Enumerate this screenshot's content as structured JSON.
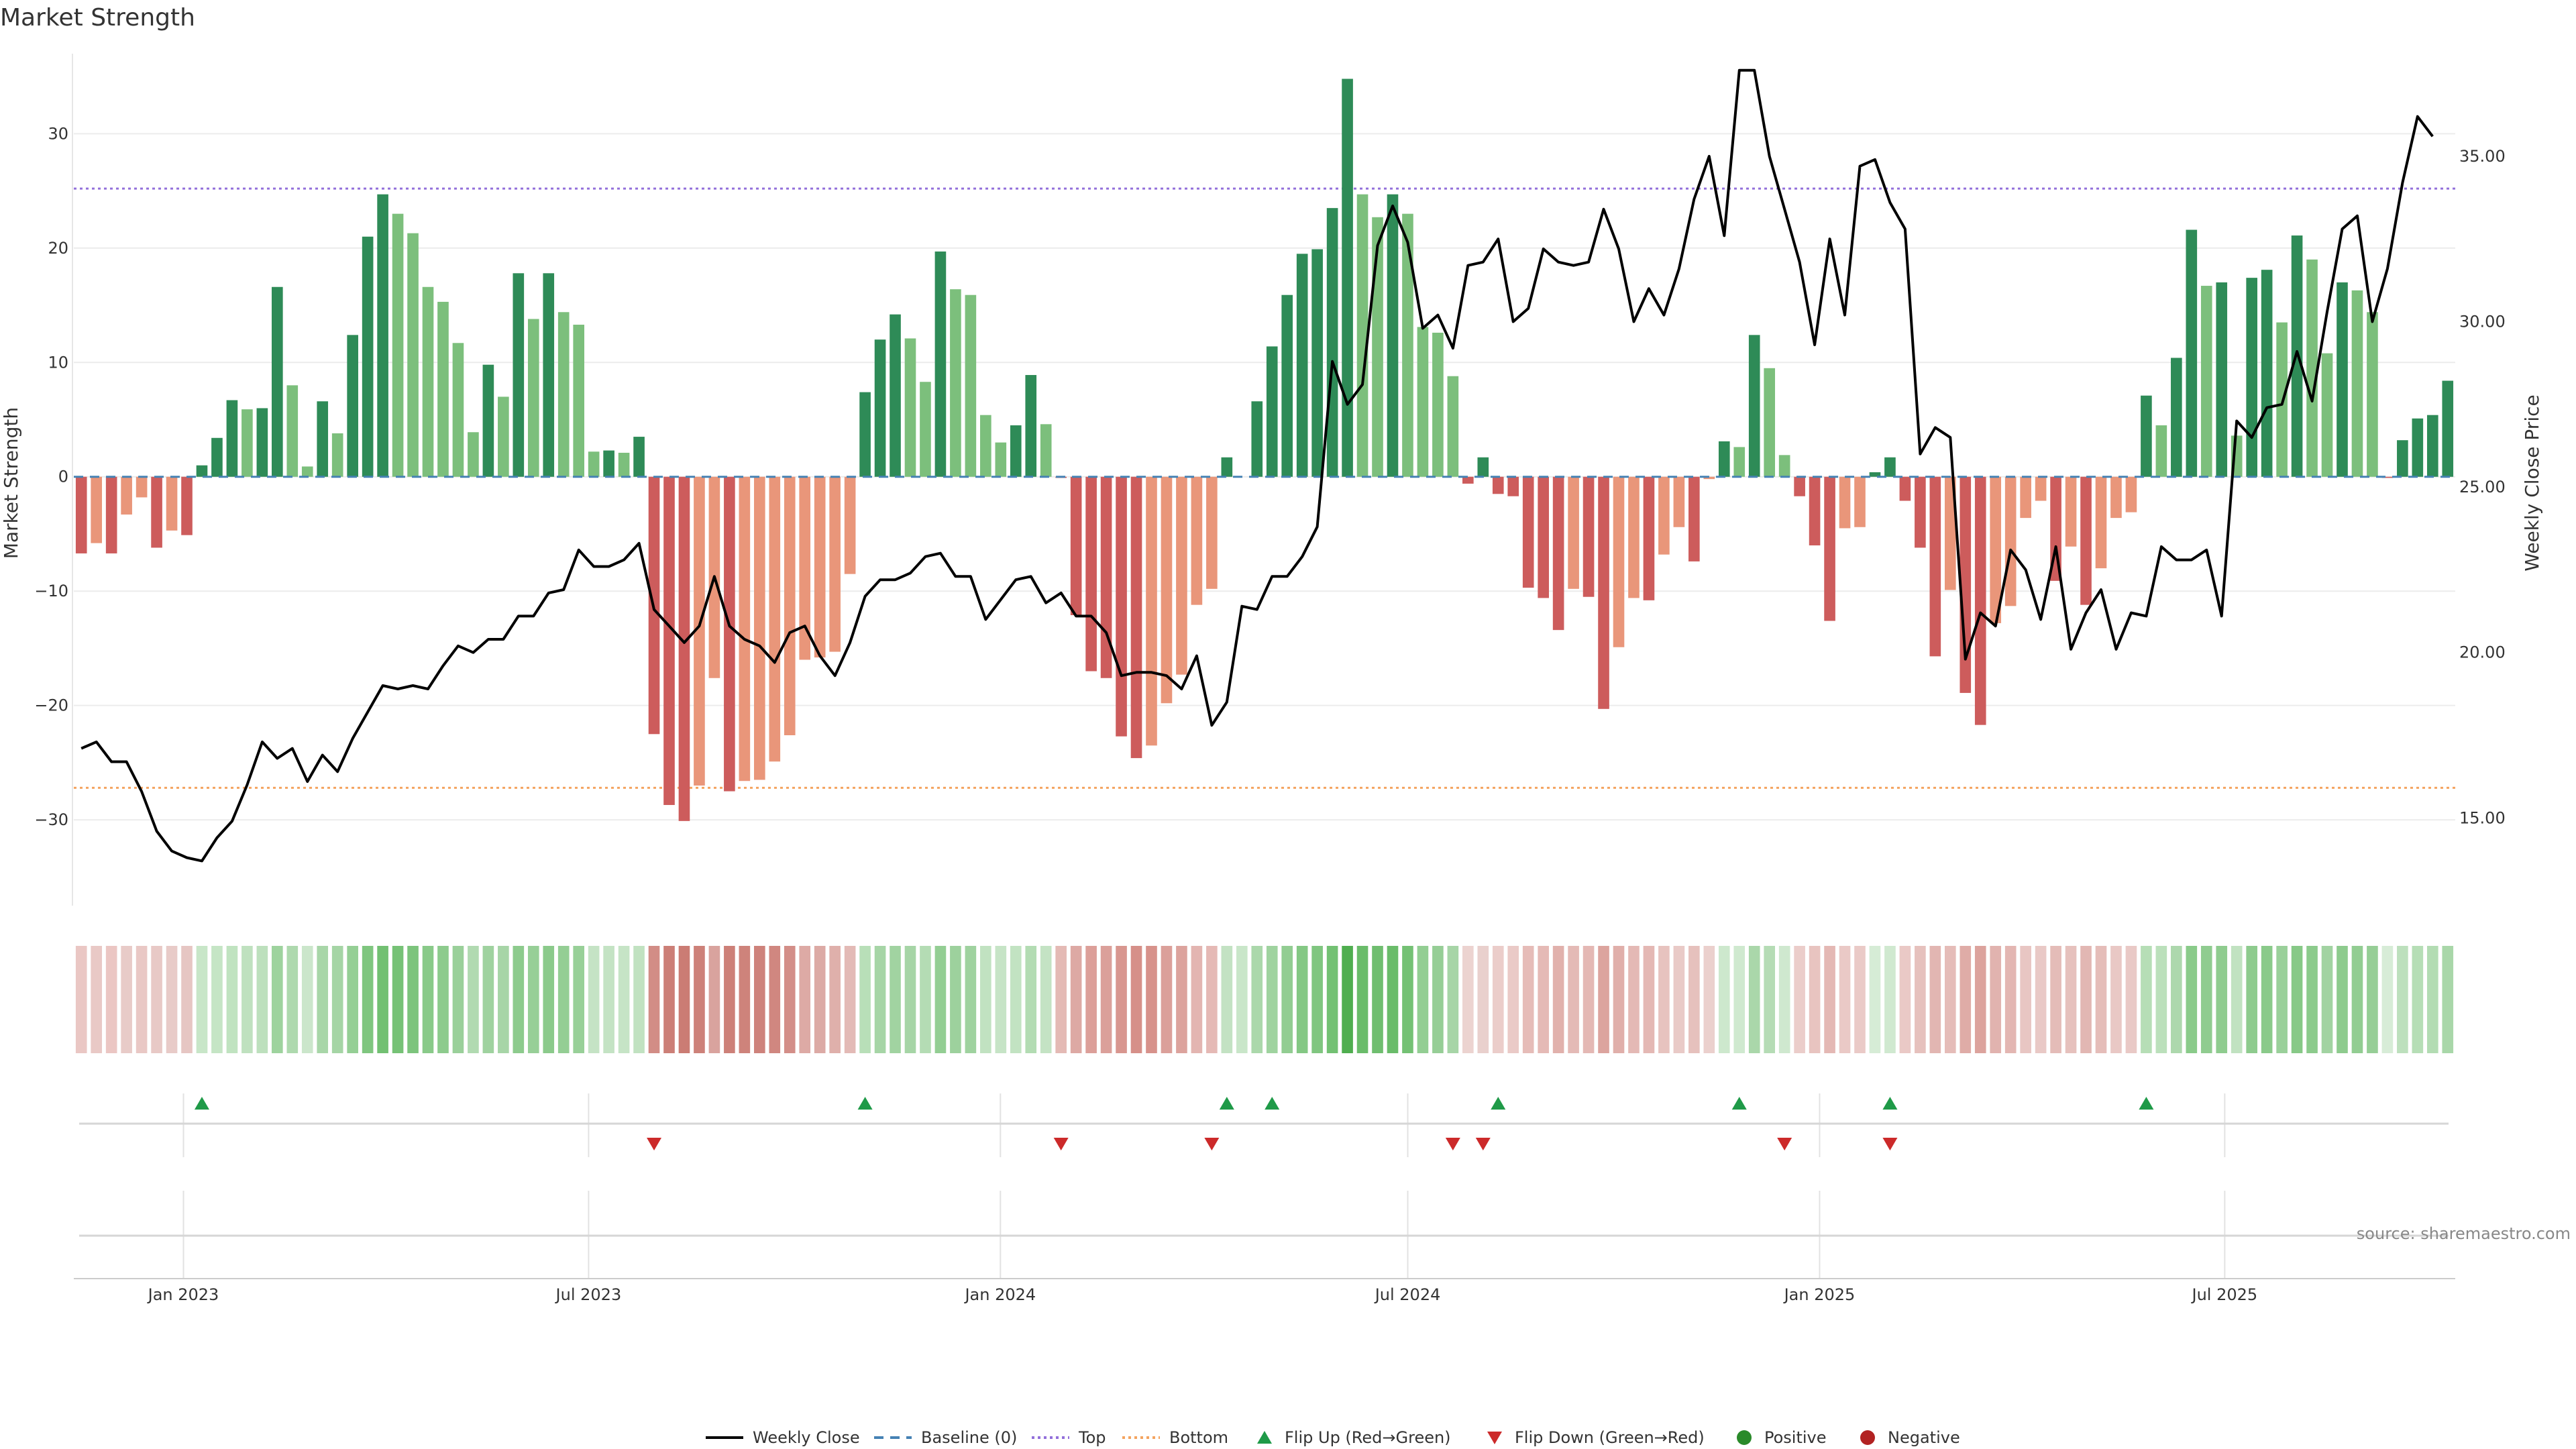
{
  "chart_data": {
    "type": "bar",
    "title": "Market Strength",
    "ylabel_left": "Market Strength",
    "ylabel_right": "Weekly Close Price",
    "source": "source: sharemaestro.com",
    "left_axis": {
      "ylim": [
        -37.5,
        37.0
      ],
      "ticks": [
        30,
        20,
        10,
        0,
        -10,
        -20,
        -30
      ],
      "tick_labels": [
        "30",
        "20",
        "10",
        "0",
        "−10",
        "−20",
        "−30"
      ]
    },
    "right_axis": {
      "ylim": [
        12.35,
        38.1
      ],
      "ticks": [
        35,
        30,
        25,
        20,
        15
      ],
      "tick_labels": [
        "35.00",
        "30.00",
        "25.00",
        "20.00",
        "15.00"
      ]
    },
    "time_axis": {
      "start": "2022-11-13",
      "end": "2025-10-12",
      "ticks": [
        {
          "date": "2023-01-01",
          "label": "Jan 2023"
        },
        {
          "date": "2023-07-01",
          "label": "Jul 2023"
        },
        {
          "date": "2024-01-01",
          "label": "Jan 2024"
        },
        {
          "date": "2024-07-01",
          "label": "Jul 2024"
        },
        {
          "date": "2025-01-01",
          "label": "Jan 2025"
        },
        {
          "date": "2025-07-01",
          "label": "Jul 2025"
        }
      ]
    },
    "reference_lines": {
      "top": 25.2,
      "bottom": -27.2,
      "baseline": 0
    },
    "colors": {
      "pos_strong": "#2e8b57",
      "pos_weak": "#7cbf7c",
      "neg_strong": "#cd5c5c",
      "neg_weak": "#e9967a",
      "top": "#9370db",
      "bottom": "#f4a460",
      "baseline": "#4682b4",
      "close": "#000000",
      "flip_up": "#1f9a48",
      "flip_down": "#cc2a2a",
      "positive": "#2a8a2a",
      "negative": "#b22222"
    },
    "strength": [
      -6.7,
      -5.8,
      -6.7,
      -3.3,
      -1.8,
      -6.2,
      -4.7,
      -5.1,
      1.0,
      3.4,
      6.7,
      5.9,
      6.0,
      16.6,
      8.0,
      0.9,
      6.6,
      3.8,
      12.4,
      21.0,
      24.7,
      23.0,
      21.3,
      16.6,
      15.3,
      11.7,
      3.9,
      9.8,
      7.0,
      17.8,
      13.8,
      17.8,
      14.4,
      13.3,
      2.2,
      2.3,
      2.1,
      3.5,
      -22.5,
      -28.7,
      -30.1,
      -27.0,
      -17.6,
      -27.5,
      -26.6,
      -26.5,
      -24.9,
      -22.6,
      -16.0,
      -15.8,
      -15.3,
      -8.5,
      7.4,
      12.0,
      14.2,
      12.1,
      8.3,
      19.7,
      16.4,
      15.9,
      5.4,
      3.0,
      4.5,
      8.9,
      4.6,
      -0.1,
      -12.1,
      -17.0,
      -17.6,
      -22.7,
      -24.6,
      -23.5,
      -19.8,
      -17.3,
      -11.2,
      -9.8,
      1.7,
      0,
      6.6,
      11.4,
      15.9,
      19.5,
      19.9,
      23.5,
      34.8,
      24.7,
      22.7,
      24.7,
      23.0,
      13.1,
      12.6,
      8.8,
      -0.6,
      1.7,
      -1.5,
      -1.7,
      -9.7,
      -10.6,
      -13.4,
      -9.8,
      -10.5,
      -20.3,
      -14.9,
      -10.6,
      -10.8,
      -6.8,
      -4.4,
      -7.4,
      -0.2,
      3.1,
      2.6,
      12.4,
      9.5,
      1.9,
      -1.7,
      -6.0,
      -12.6,
      -4.5,
      -4.4,
      0.4,
      1.7,
      -2.1,
      -6.2,
      -15.7,
      -9.9,
      -18.9,
      -21.7,
      -12.8,
      -11.3,
      -3.6,
      -2.1,
      -9.1,
      -6.1,
      -11.2,
      -8.0,
      -3.6,
      -3.1,
      7.1,
      4.5,
      10.4,
      21.6,
      16.7,
      17.0,
      3.6,
      17.4,
      18.1,
      13.5,
      21.1,
      19.0,
      10.8,
      17.0,
      16.3,
      14.4,
      -0.1,
      3.2,
      5.1,
      5.4,
      8.4
    ],
    "weekly_close": [
      17.1,
      17.3,
      16.7,
      16.7,
      15.8,
      14.6,
      14.0,
      13.8,
      13.7,
      14.4,
      14.9,
      16.0,
      17.3,
      16.8,
      17.1,
      16.1,
      16.9,
      16.4,
      17.4,
      18.2,
      19.0,
      18.9,
      19.0,
      18.9,
      19.6,
      20.2,
      20.0,
      20.4,
      20.4,
      21.1,
      21.1,
      21.8,
      21.9,
      23.1,
      22.6,
      22.6,
      22.8,
      23.3,
      21.3,
      20.8,
      20.3,
      20.8,
      22.3,
      20.8,
      20.4,
      20.2,
      19.7,
      20.6,
      20.8,
      19.9,
      19.3,
      20.3,
      21.7,
      22.2,
      22.2,
      22.4,
      22.9,
      23.0,
      22.3,
      22.3,
      21.0,
      21.6,
      22.2,
      22.3,
      21.5,
      21.8,
      21.1,
      21.1,
      20.6,
      19.3,
      19.4,
      19.4,
      19.3,
      18.9,
      19.9,
      17.8,
      18.5,
      21.4,
      21.3,
      22.3,
      22.3,
      22.9,
      23.8,
      28.8,
      27.5,
      28.1,
      32.3,
      33.5,
      32.4,
      29.8,
      30.2,
      29.2,
      31.7,
      31.8,
      32.5,
      30.0,
      30.4,
      32.2,
      31.8,
      31.7,
      31.8,
      33.4,
      32.2,
      30.0,
      31.0,
      30.2,
      31.6,
      33.7,
      35.0,
      32.6,
      37.6,
      37.6,
      35.0,
      33.4,
      31.8,
      29.3,
      32.5,
      30.2,
      34.7,
      34.9,
      33.6,
      32.8,
      26.0,
      26.8,
      26.5,
      19.8,
      21.2,
      20.8,
      23.1,
      22.5,
      21.0,
      23.2,
      20.1,
      21.2,
      21.9,
      20.1,
      21.2,
      21.1,
      23.2,
      22.8,
      22.8,
      23.1,
      21.1,
      27.0,
      26.5,
      27.4,
      27.5,
      29.1,
      27.6,
      30.3,
      32.8,
      33.2,
      30.0,
      31.6,
      34.2,
      36.2,
      35.6
    ],
    "heat_colors": [
      "#eac7c4",
      "#e9c9c6",
      "#ebc6c3",
      "#e8cbc8",
      "#e9c8c5",
      "#e8c9c6",
      "#e8cbc8",
      "#e6c6c3",
      "#c8e6c8",
      "#c5e5c5",
      "#c0e3c0",
      "#bfe1bf",
      "#bde0bd",
      "#9ed39e",
      "#aed9ae",
      "#cbe6cb",
      "#a8d6a8",
      "#a5d5a5",
      "#95cf95",
      "#7fc67f",
      "#72c072",
      "#76c276",
      "#7cc47c",
      "#89ca89",
      "#8dcb8d",
      "#9ad09a",
      "#b1dab1",
      "#9fd29f",
      "#a7d5a7",
      "#8dcb8d",
      "#97cf97",
      "#8bca8b",
      "#94ce94",
      "#98d098",
      "#c5e3c5",
      "#c4e3c4",
      "#c6e4c6",
      "#c1e2c1",
      "#d28d86",
      "#cc7f77",
      "#cb7c74",
      "#cd8179",
      "#d9a39e",
      "#cd8078",
      "#ce837b",
      "#ce827b",
      "#d08780",
      "#d38e88",
      "#ddaaa5",
      "#dcaaa5",
      "#dfb0ab",
      "#e3bab6",
      "#b8dfb8",
      "#a6d5a6",
      "#a1d3a1",
      "#a6d5a6",
      "#b4dcb4",
      "#93ce93",
      "#9dd19d",
      "#9fd29f",
      "#c1e2c1",
      "#c6e4c6",
      "#c2e3c2",
      "#b3dcb3",
      "#c4e3c4",
      "#e4bab5",
      "#dda9a4",
      "#dc9f99",
      "#dba09a",
      "#d8968f",
      "#d69089",
      "#d7928b",
      "#dba09a",
      "#dca39d",
      "#e3b5b1",
      "#e5b9b5",
      "#c3e2c3",
      "#c9e6c9",
      "#abd8ab",
      "#9fd39f",
      "#92cd92",
      "#84c884",
      "#80c680",
      "#73c173",
      "#4fae4f",
      "#6abc6a",
      "#6fbe6f",
      "#6abc6a",
      "#74c174",
      "#93ce93",
      "#96ce96",
      "#a7d5a7",
      "#ecd3d0",
      "#e9d0cd",
      "#ebcdca",
      "#eacac7",
      "#e6bcb8",
      "#e5bab6",
      "#e1b1ac",
      "#e4bab6",
      "#e4b8b4",
      "#dca49e",
      "#e0afaa",
      "#e4b9b5",
      "#e4b8b4",
      "#e7c3bf",
      "#e9cac7",
      "#e6c1bd",
      "#ebd0cd",
      "#cde8cd",
      "#cfe9cf",
      "#aad7aa",
      "#b5dcb5",
      "#cfe8cf",
      "#ebcdca",
      "#e8c4c0",
      "#e4b8b4",
      "#eac9c6",
      "#eacac7",
      "#d6ecd6",
      "#d0e9d0",
      "#eac9c6",
      "#e6c1bd",
      "#e2b6b2",
      "#e5bcb8",
      "#dfaca7",
      "#dca39d",
      "#e1b3af",
      "#e3b6b2",
      "#e8c6c3",
      "#e9c9c6",
      "#e4bcb8",
      "#e6c1bd",
      "#e2b7b3",
      "#e5bdb9",
      "#e9c8c5",
      "#e9c9c6",
      "#b6deb6",
      "#bbe0bb",
      "#add8ad",
      "#8acb8a",
      "#90cc90",
      "#8fcc8f",
      "#c1e2c1",
      "#8ecb8e",
      "#8aca8a",
      "#9ad09a",
      "#87c987",
      "#8ccb8c",
      "#a2d3a2",
      "#8ecb8e",
      "#92cd92",
      "#96ce96",
      "#d7ecd7",
      "#bde0bd",
      "#b6deb6",
      "#b3dcb3",
      "#a9d7a9"
    ],
    "flips_up": [
      8,
      52,
      76,
      79,
      94,
      110,
      120,
      137
    ],
    "flips_down": [
      38,
      65,
      75,
      91,
      93,
      113,
      120
    ],
    "legend": [
      "Weekly Close",
      "Baseline (0)",
      "Top",
      "Bottom",
      "Flip Up (Red→Green)",
      "Flip Down (Green→Red)",
      "Positive",
      "Negative"
    ]
  }
}
